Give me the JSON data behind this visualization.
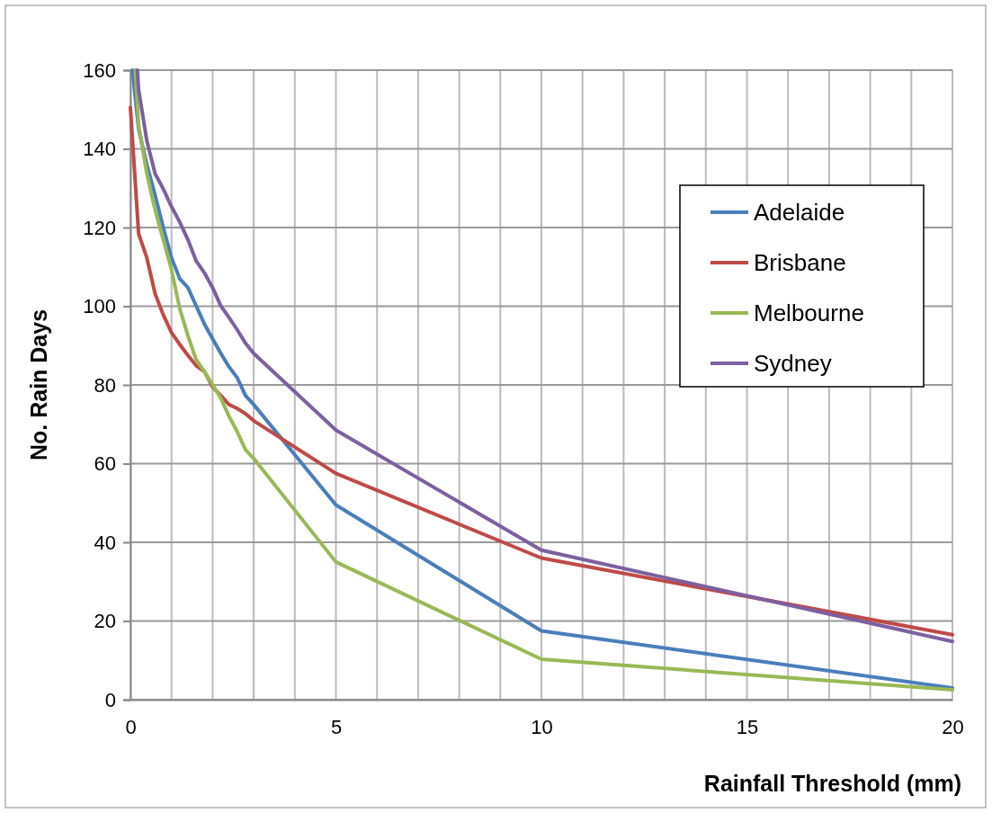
{
  "chart_data": {
    "type": "line",
    "xlabel": "Rainfall Threshold  (mm)",
    "ylabel": "No. Rain Days",
    "xlim": [
      0,
      20
    ],
    "ylim": [
      0,
      160
    ],
    "xticks": [
      0,
      {
        "value": 1,
        "label": null
      },
      {
        "value": 2,
        "label": null
      },
      {
        "value": 3,
        "label": null
      },
      {
        "value": 4,
        "label": null
      },
      5,
      {
        "value": 6,
        "label": null
      },
      {
        "value": 7,
        "label": null
      },
      {
        "value": 8,
        "label": null
      },
      {
        "value": 9,
        "label": null
      },
      10,
      {
        "value": 11,
        "label": null
      },
      {
        "value": 12,
        "label": null
      },
      {
        "value": 13,
        "label": null
      },
      {
        "value": 14,
        "label": null
      },
      15,
      {
        "value": 16,
        "label": null
      },
      {
        "value": 17,
        "label": null
      },
      {
        "value": 18,
        "label": null
      },
      {
        "value": 19,
        "label": null
      },
      20
    ],
    "yticks": [
      0,
      20,
      40,
      60,
      80,
      100,
      120,
      140,
      160
    ],
    "grid": true,
    "legend": "right",
    "marker": "none",
    "line_style": "solid",
    "series": [
      {
        "name": "Adelaide",
        "color": "#4a7ebb",
        "x": [
          0.05,
          0.2,
          0.4,
          0.6,
          0.8,
          1.0,
          1.2,
          1.4,
          1.6,
          1.8,
          2.0,
          2.2,
          2.4,
          2.6,
          2.8,
          3.0,
          5,
          10,
          20
        ],
        "values": [
          160,
          145,
          136,
          128.3,
          120,
          112.3,
          107,
          104.7,
          100.1,
          95.5,
          91.7,
          88,
          84.6,
          81.8,
          77.3,
          75,
          49.5,
          17.5,
          3
        ]
      },
      {
        "name": "Brisbane",
        "color": "#be4b48",
        "x": [
          0,
          0.2,
          0.4,
          0.6,
          0.8,
          1.0,
          1.2,
          1.4,
          1.6,
          1.8,
          2.0,
          2.2,
          2.4,
          2.6,
          2.8,
          3.0,
          5,
          10,
          20
        ],
        "values": [
          150.5,
          118.4,
          112.3,
          103.2,
          97.8,
          93.3,
          90.3,
          87.5,
          84.9,
          83.4,
          79.5,
          77.3,
          75,
          74,
          72.7,
          70.9,
          57.5,
          36,
          16.5
        ]
      },
      {
        "name": "Melbourne",
        "color": "#98b954",
        "x": [
          0.12,
          0.2,
          0.4,
          0.6,
          0.8,
          1.0,
          1.2,
          1.4,
          1.6,
          1.8,
          2.0,
          2.2,
          2.4,
          2.6,
          2.8,
          3.0,
          5,
          10,
          20
        ],
        "values": [
          160,
          146,
          133.7,
          124.5,
          116.9,
          109.3,
          99.4,
          92.5,
          86.4,
          83.4,
          80,
          76.6,
          72,
          68.1,
          63.5,
          61.3,
          35,
          10.3,
          2.5
        ]
      },
      {
        "name": "Sydney",
        "color": "#7d60a0",
        "x": [
          0.17,
          0.2,
          0.4,
          0.6,
          0.8,
          1.0,
          1.2,
          1.4,
          1.6,
          1.8,
          2.0,
          2.2,
          2.4,
          2.6,
          2.8,
          3.0,
          5,
          10,
          20
        ],
        "values": [
          160,
          155,
          142,
          133.7,
          129.8,
          125.3,
          121.4,
          116.9,
          111.5,
          108.5,
          104.7,
          100.1,
          97.1,
          94,
          90.6,
          88,
          68.5,
          38,
          14.8
        ]
      }
    ]
  }
}
